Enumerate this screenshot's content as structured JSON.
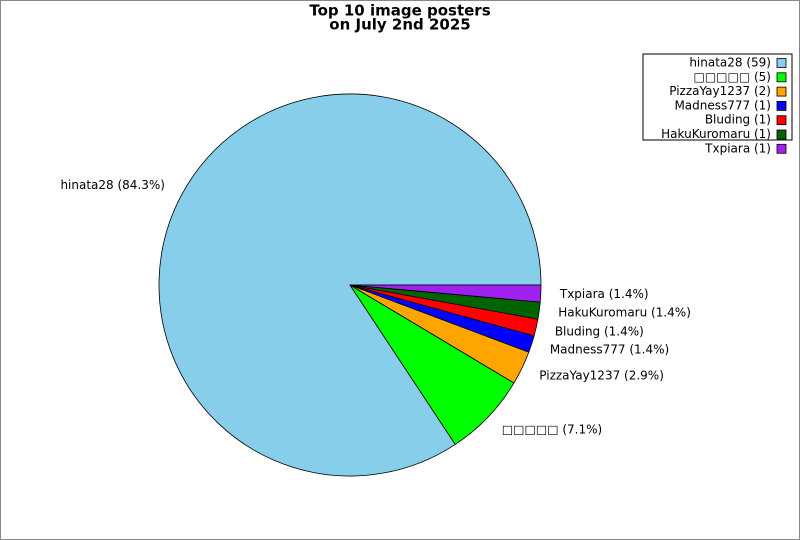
{
  "chart_data": {
    "type": "pie",
    "title": [
      "Top 10 image posters",
      "on July 2nd 2025"
    ],
    "values": [
      59,
      5,
      2,
      1,
      1,
      1,
      1
    ],
    "value_labels": [
      "hinata28 (84.3%)",
      "□□□□□ (7.1%)",
      "PizzaYay1237 (2.9%)",
      "Madness777 (1.4%)",
      "Bluding (1.4%)",
      "HakuKuromaru (1.4%)",
      "Txpiara (1.4%)"
    ],
    "legend_labels": [
      "hinata28 (59)",
      "□□□□□ (5)",
      "PizzaYay1237 (2)",
      "Madness777 (1)",
      "Bluding (1)",
      "HakuKuromaru (1)",
      "Txpiara (1)"
    ],
    "colors": [
      "#87ceeb",
      "#00ff00",
      "#ffa500",
      "#0000ff",
      "#ff0000",
      "#006400",
      "#a020f0"
    ],
    "legend_position": "upper right"
  }
}
